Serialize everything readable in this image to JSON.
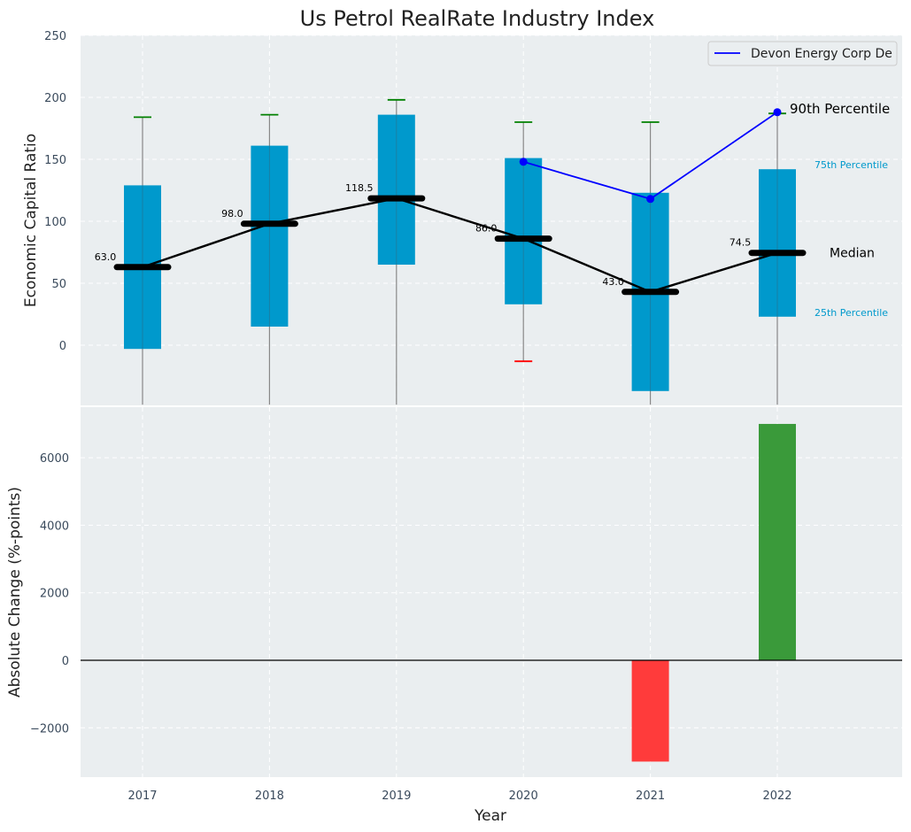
{
  "chart_data": [
    {
      "type": "box",
      "title": "Us Petrol RealRate Industry Index",
      "ylabel": "Economic Capital Ratio",
      "ylim": [
        -48,
        250
      ],
      "yticks": [
        0,
        50,
        100,
        150,
        200,
        250
      ],
      "categories": [
        "2017",
        "2018",
        "2019",
        "2020",
        "2021",
        "2022"
      ],
      "boxes": [
        {
          "q1": -3,
          "q3": 129,
          "median": 63.0,
          "whisker_low": -48,
          "whisker_high": 184,
          "high_cap_color": "#008000",
          "low_cap_color": null
        },
        {
          "q1": 15,
          "q3": 161,
          "median": 98.0,
          "whisker_low": -48,
          "whisker_high": 186,
          "high_cap_color": "#008000",
          "low_cap_color": null
        },
        {
          "q1": 65,
          "q3": 186,
          "median": 118.5,
          "whisker_low": -48,
          "whisker_high": 198,
          "high_cap_color": "#008000",
          "low_cap_color": null
        },
        {
          "q1": 33,
          "q3": 151,
          "median": 86.0,
          "whisker_low": -13,
          "whisker_high": 180,
          "high_cap_color": "#008000",
          "low_cap_color": "#ff0000"
        },
        {
          "q1": -37,
          "q3": 123,
          "median": 43.0,
          "whisker_low": -48,
          "whisker_high": 180,
          "high_cap_color": "#008000",
          "low_cap_color": null
        },
        {
          "q1": 23,
          "q3": 142,
          "median": 74.5,
          "whisker_low": -48,
          "whisker_high": 187,
          "high_cap_color": "#008000",
          "low_cap_color": null
        }
      ],
      "median_labels": [
        "63.0",
        "98.0",
        "118.5",
        "86.0",
        "43.0",
        "74.5"
      ],
      "series": [
        {
          "name": "Devon Energy Corp De",
          "x": [
            "2020",
            "2021",
            "2022"
          ],
          "values": [
            148,
            118,
            188
          ],
          "color": "#0000ff"
        }
      ],
      "annotations": {
        "p90": "90th Percentile",
        "p75": "75th Percentile",
        "median": "Median",
        "p25": "25th Percentile"
      },
      "box_color": "#0099cc",
      "grid": true,
      "legend_placement": "top-right"
    },
    {
      "type": "bar",
      "ylabel": "Absolute Change (%-points)",
      "xlabel": "Year",
      "ylim": [
        -3400,
        7400
      ],
      "yticks": [
        -2000,
        0,
        2000,
        4000,
        6000
      ],
      "ytick_labels": [
        "−2000",
        "0",
        "2000",
        "4000",
        "6000"
      ],
      "categories": [
        "2017",
        "2018",
        "2019",
        "2020",
        "2021",
        "2022"
      ],
      "values": [
        0,
        0,
        0,
        0,
        -3000,
        7000
      ],
      "positive_color": "#3a9a3a",
      "negative_color": "#ff3b3b",
      "grid": true
    }
  ]
}
